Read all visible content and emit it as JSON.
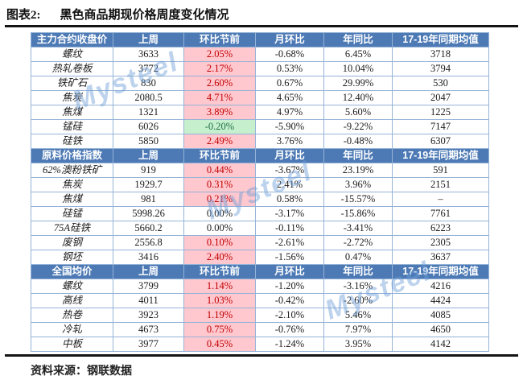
{
  "page": {
    "title_tag": "图表2:",
    "title": "黑色商品期现价格周度变化情况",
    "source": "资料来源：钢联数据",
    "watermark": "Mysteel"
  },
  "colors": {
    "header_bg": "#4d7ab5",
    "border": "#95b3d7",
    "up_bg": "#ffc7ce",
    "up_text": "#c00000",
    "down_bg": "#c6efce",
    "down_text": "#1e7145"
  },
  "table": {
    "columns": [
      "上周",
      "环比节前",
      "月环比",
      "年同比",
      "17-19年同期均值"
    ],
    "sections": [
      {
        "header": "主力合约收盘价",
        "rows": [
          {
            "label": "螺纹",
            "last_week": "3633",
            "wow": "2.05%",
            "trend": "up",
            "mom": "-0.68%",
            "yoy": "6.45%",
            "avg": "3718"
          },
          {
            "label": "热轧卷板",
            "last_week": "3772",
            "wow": "2.17%",
            "trend": "up",
            "mom": "0.53%",
            "yoy": "10.04%",
            "avg": "3794"
          },
          {
            "label": "铁矿石",
            "last_week": "830",
            "wow": "2.60%",
            "trend": "up",
            "mom": "0.67%",
            "yoy": "29.99%",
            "avg": "530"
          },
          {
            "label": "焦炭",
            "last_week": "2080.5",
            "wow": "4.71%",
            "trend": "up",
            "mom": "4.65%",
            "yoy": "12.40%",
            "avg": "2047"
          },
          {
            "label": "焦煤",
            "last_week": "1321",
            "wow": "3.89%",
            "trend": "up",
            "mom": "4.97%",
            "yoy": "5.60%",
            "avg": "1225"
          },
          {
            "label": "锰硅",
            "last_week": "6026",
            "wow": "-0.20%",
            "trend": "down",
            "mom": "-5.90%",
            "yoy": "-9.22%",
            "avg": "7147"
          },
          {
            "label": "硅铁",
            "last_week": "5850",
            "wow": "2.49%",
            "trend": "up",
            "mom": "3.76%",
            "yoy": "-0.48%",
            "avg": "6307"
          }
        ]
      },
      {
        "header": "原料价格指数",
        "rows": [
          {
            "label": "62%澳粉铁矿",
            "last_week": "919",
            "wow": "0.44%",
            "trend": "up",
            "mom": "-3.67%",
            "yoy": "23.19%",
            "avg": "591"
          },
          {
            "label": "焦炭",
            "last_week": "1929.7",
            "wow": "0.31%",
            "trend": "up",
            "mom": "2.41%",
            "yoy": "3.96%",
            "avg": "2151"
          },
          {
            "label": "焦煤",
            "last_week": "981",
            "wow": "0.21%",
            "trend": "up",
            "mom": "0.58%",
            "yoy": "-15.57%",
            "avg": "–"
          },
          {
            "label": "硅锰",
            "last_week": "5998.26",
            "wow": "0.00%",
            "trend": "flat",
            "mom": "-3.17%",
            "yoy": "-15.86%",
            "avg": "7761"
          },
          {
            "label": "75A硅铁",
            "last_week": "5660.2",
            "wow": "0.00%",
            "trend": "flat",
            "mom": "-0.11%",
            "yoy": "-3.41%",
            "avg": "6223"
          },
          {
            "label": "废钢",
            "last_week": "2556.8",
            "wow": "0.10%",
            "trend": "up",
            "mom": "-2.61%",
            "yoy": "-2.72%",
            "avg": "2305"
          },
          {
            "label": "钢坯",
            "last_week": "3416",
            "wow": "2.40%",
            "trend": "up",
            "mom": "-1.56%",
            "yoy": "0.47%",
            "avg": "3637"
          }
        ]
      },
      {
        "header": "全国均价",
        "rows": [
          {
            "label": "螺纹",
            "last_week": "3799",
            "wow": "1.14%",
            "trend": "up",
            "mom": "-1.20%",
            "yoy": "-3.16%",
            "avg": "4216"
          },
          {
            "label": "高线",
            "last_week": "4011",
            "wow": "1.03%",
            "trend": "up",
            "mom": "-0.42%",
            "yoy": "-2.60%",
            "avg": "4424"
          },
          {
            "label": "热卷",
            "last_week": "3923",
            "wow": "1.19%",
            "trend": "up",
            "mom": "-2.10%",
            "yoy": "5.46%",
            "avg": "4085"
          },
          {
            "label": "冷轧",
            "last_week": "4673",
            "wow": "0.75%",
            "trend": "up",
            "mom": "-0.76%",
            "yoy": "7.97%",
            "avg": "4650"
          },
          {
            "label": "中板",
            "last_week": "3977",
            "wow": "0.45%",
            "trend": "up",
            "mom": "-1.24%",
            "yoy": "3.95%",
            "avg": "4142"
          }
        ]
      }
    ]
  }
}
